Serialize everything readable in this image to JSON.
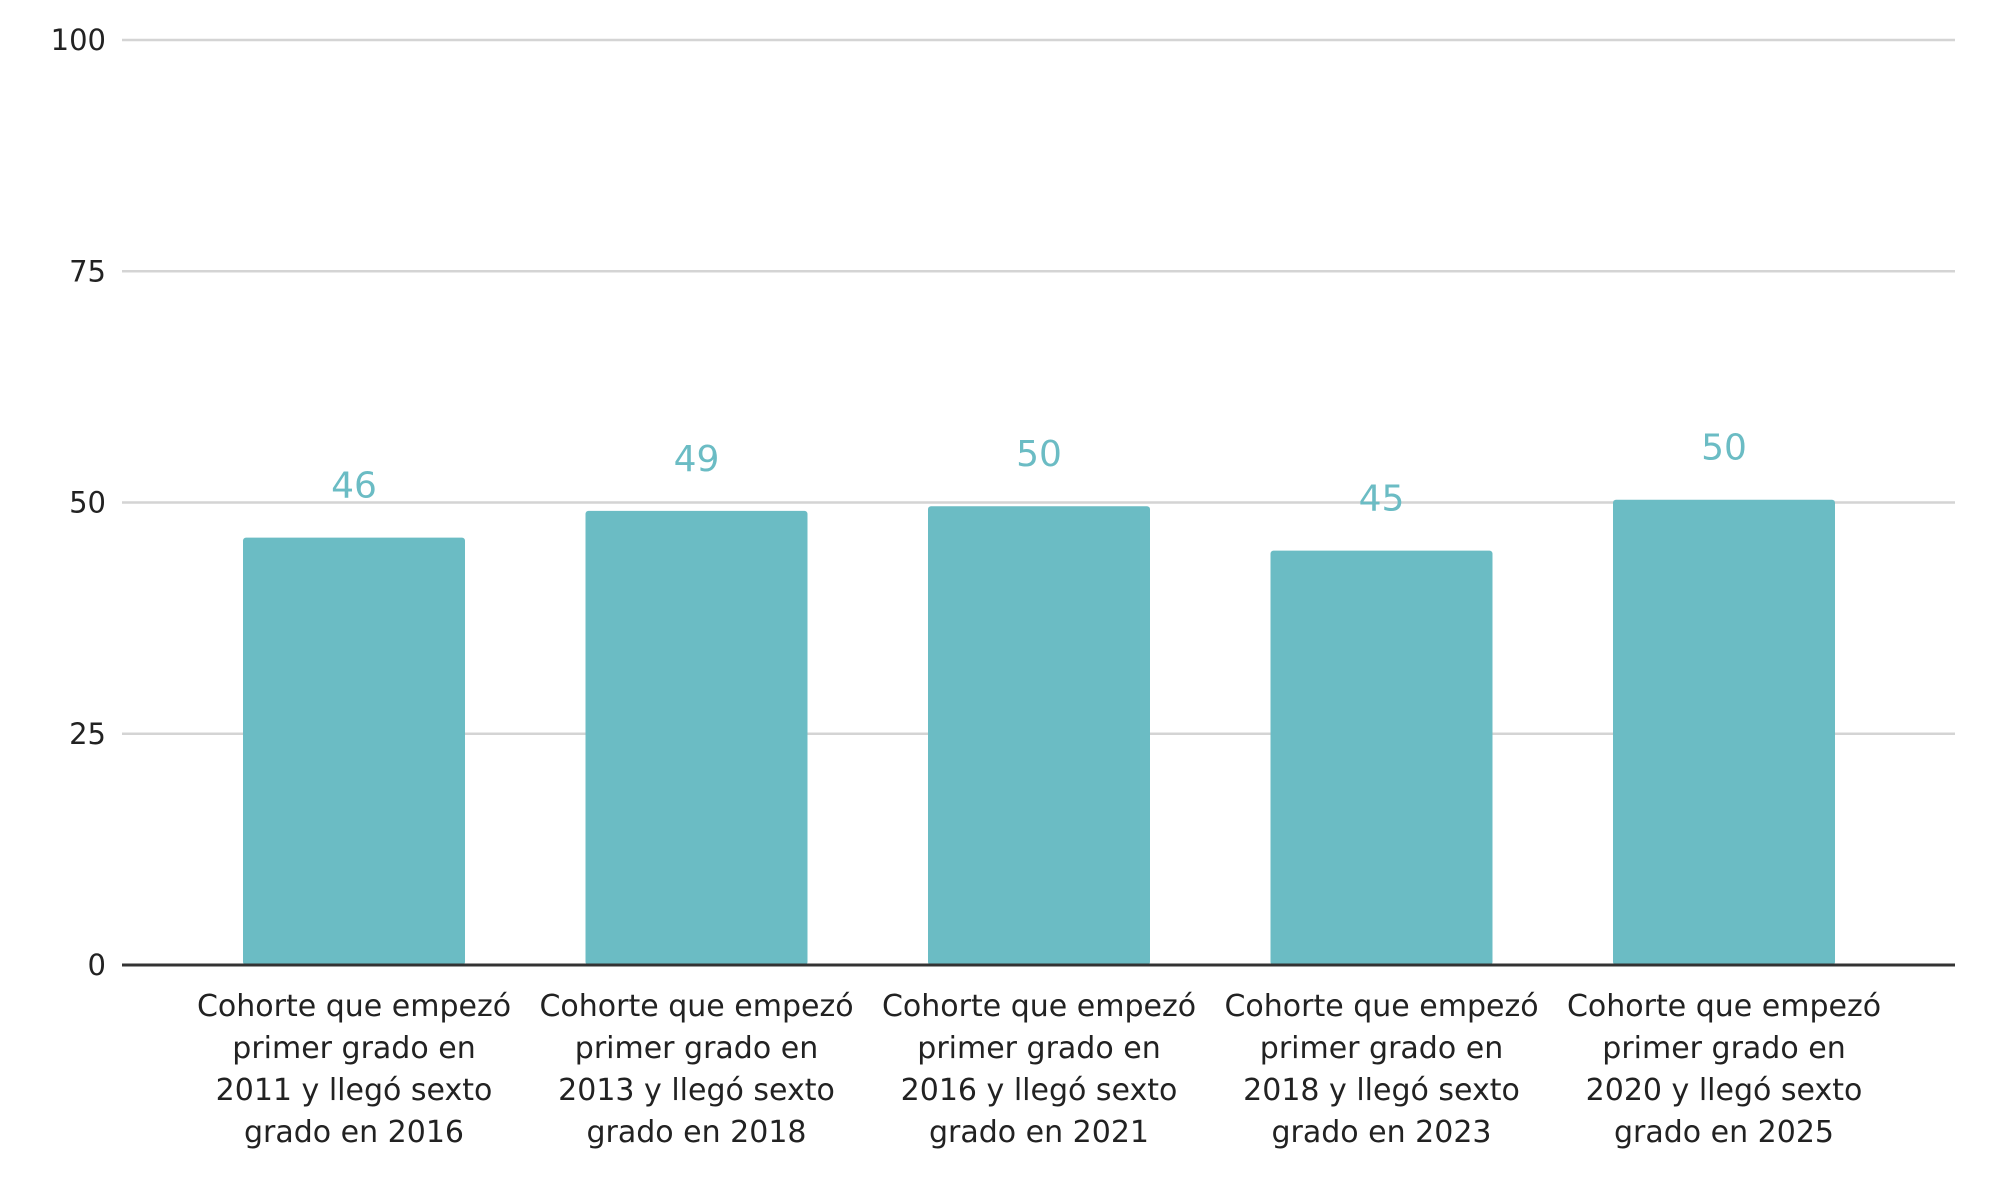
{
  "chart_data": {
    "type": "bar",
    "title": "",
    "xlabel": "",
    "ylabel": "",
    "ylim": [
      0,
      100
    ],
    "yticks": [
      0,
      25,
      50,
      75,
      100
    ],
    "grid": true,
    "categories": [
      [
        "Cohorte que empezó",
        "primer grado en",
        "2011 y llegó sexto",
        "grado en 2016"
      ],
      [
        "Cohorte que empezó",
        "primer grado en",
        "2013 y llegó sexto",
        "grado en 2018"
      ],
      [
        "Cohorte que empezó",
        "primer grado en",
        "2016 y llegó sexto",
        "grado en 2021"
      ],
      [
        "Cohorte que empezó",
        "primer grado en",
        "2018 y llegó sexto",
        "grado en 2023"
      ],
      [
        "Cohorte que empezó",
        "primer grado en",
        "2020 y llegó sexto",
        "grado en 2025"
      ]
    ],
    "values": [
      46.2,
      49.1,
      49.6,
      44.8,
      50.3
    ],
    "data_labels": [
      "46",
      "49",
      "50",
      "45",
      "50"
    ],
    "colors": {
      "bar": "#6bbcc4",
      "label": "#6bbcc4",
      "grid": "#d4d4d4",
      "axis": "#333333",
      "tick_text": "#222222"
    }
  }
}
